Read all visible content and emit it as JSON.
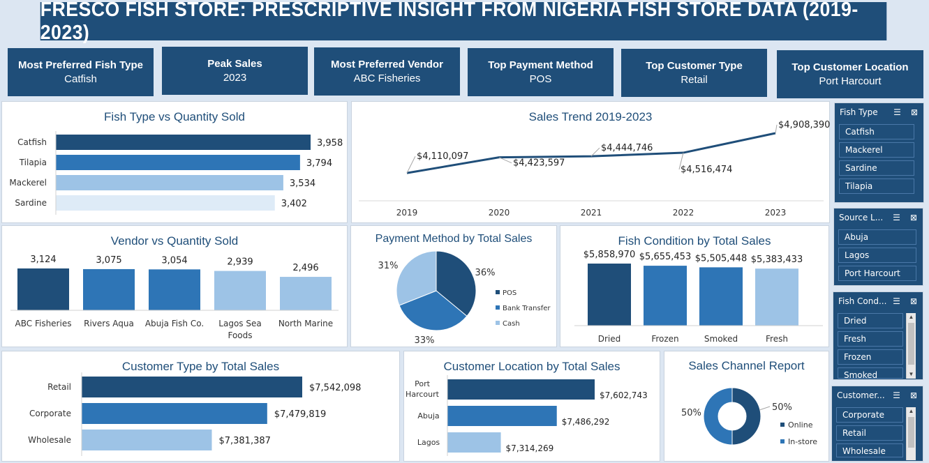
{
  "title": "FRESCO FISH STORE: PRESCRIPTIVE INSIGHT FROM NIGERIA FISH STORE DATA (2019-2023)",
  "kpis": [
    {
      "label": "Most Preferred Fish Type",
      "value": "Catfish"
    },
    {
      "label": "Peak Sales",
      "value": "2023"
    },
    {
      "label": "Most Preferred Vendor",
      "value": "ABC Fisheries"
    },
    {
      "label": "Top Payment Method",
      "value": "POS"
    },
    {
      "label": "Top Customer Type",
      "value": "Retail"
    },
    {
      "label": "Top Customer Location",
      "value": "Port Harcourt"
    }
  ],
  "colors": {
    "dark": "#1f4e79",
    "mid": "#2e75b6",
    "light": "#9dc3e6",
    "pale": "#deebf7"
  },
  "chart_data": [
    {
      "type": "bar",
      "orientation": "horizontal",
      "title": "Fish Type vs Quantity Sold",
      "categories": [
        "Catfish",
        "Tilapia",
        "Mackerel",
        "Sardine"
      ],
      "values": [
        3958,
        3794,
        3534,
        3402
      ],
      "labels": [
        "3,958",
        "3,794",
        "3,534",
        "3,402"
      ]
    },
    {
      "type": "line",
      "title": "Sales Trend 2019-2023",
      "x": [
        "2019",
        "2020",
        "2021",
        "2022",
        "2023"
      ],
      "values": [
        4110097,
        4423597,
        4444746,
        4516474,
        4908390
      ],
      "labels": [
        "$4,110,097",
        "$4,423,597",
        "$4,444,746",
        "$4,516,474",
        "$4,908,390"
      ]
    },
    {
      "type": "bar",
      "title": "Vendor vs Quantity Sold",
      "categories": [
        "ABC Fisheries",
        "Rivers Aqua",
        "Abuja Fish Co.",
        "Lagos Sea Foods",
        "North Marine"
      ],
      "values": [
        3124,
        3075,
        3054,
        2939,
        2496
      ],
      "labels": [
        "3,124",
        "3,075",
        "3,054",
        "2,939",
        "2,496"
      ]
    },
    {
      "type": "pie",
      "title": "Payment Method by Total Sales",
      "categories": [
        "POS",
        "Bank Transfer",
        "Cash"
      ],
      "values": [
        36,
        33,
        31
      ],
      "labels": [
        "36%",
        "33%",
        "31%"
      ]
    },
    {
      "type": "bar",
      "title": "Fish Condition by Total Sales",
      "categories": [
        "Dried",
        "Frozen",
        "Smoked",
        "Fresh"
      ],
      "values": [
        5858970,
        5655453,
        5505448,
        5383433
      ],
      "labels": [
        "$5,858,970",
        "$5,655,453",
        "$5,505,448",
        "$5,383,433"
      ]
    },
    {
      "type": "bar",
      "orientation": "horizontal",
      "title": "Customer Type by Total Sales",
      "categories": [
        "Retail",
        "Corporate",
        "Wholesale"
      ],
      "values": [
        7542098,
        7479819,
        7381387
      ],
      "labels": [
        "$7,542,098",
        "$7,479,819",
        "$7,381,387"
      ]
    },
    {
      "type": "bar",
      "orientation": "horizontal",
      "title": "Customer Location by Total Sales",
      "categories": [
        "Port Harcourt",
        "Abuja",
        "Lagos"
      ],
      "values": [
        7602743,
        7486292,
        7314269
      ],
      "labels": [
        "$7,602,743",
        "$7,486,292",
        "$7,314,269"
      ]
    },
    {
      "type": "pie",
      "variant": "donut",
      "title": "Sales Channel Report",
      "categories": [
        "Online",
        "In-store"
      ],
      "values": [
        50,
        50
      ],
      "labels": [
        "50%",
        "50%"
      ]
    }
  ],
  "slicers": [
    {
      "title": "Fish Type",
      "items": [
        "Catfish",
        "Mackerel",
        "Sardine",
        "Tilapia"
      ]
    },
    {
      "title": "Source L...",
      "items": [
        "Abuja",
        "Lagos",
        "Port Harcourt"
      ]
    },
    {
      "title": "Fish Cond...",
      "items": [
        "Dried",
        "Fresh",
        "Frozen",
        "Smoked"
      ]
    },
    {
      "title": "Customer...",
      "items": [
        "Corporate",
        "Retail",
        "Wholesale"
      ]
    }
  ]
}
